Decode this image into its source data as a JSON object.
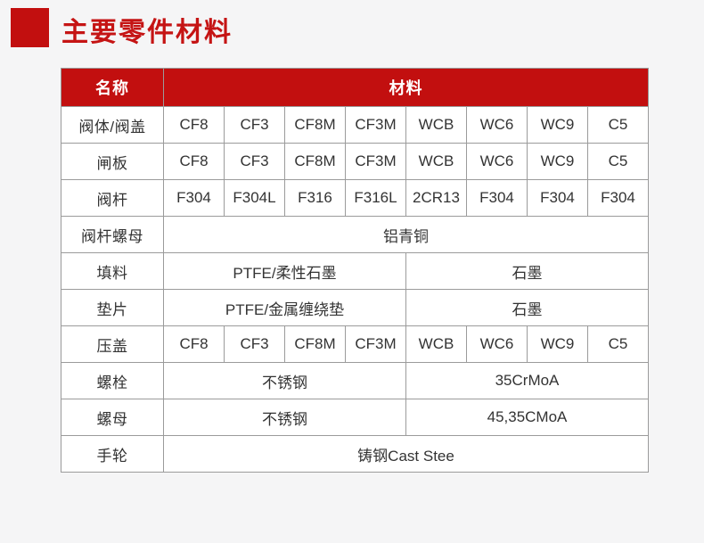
{
  "page": {
    "title": "主要零件材料",
    "background_color": "#f5f5f6",
    "accent_color": "#c20f0f",
    "title_color": "#c51414"
  },
  "table": {
    "header": {
      "name_label": "名称",
      "material_label": "材料",
      "background_color": "#c20f0f",
      "text_color": "#ffffff"
    },
    "rows": [
      {
        "name": "阀体/阀盖",
        "cells": [
          {
            "text": "CF8",
            "span": 1
          },
          {
            "text": "CF3",
            "span": 1
          },
          {
            "text": "CF8M",
            "span": 1
          },
          {
            "text": "CF3M",
            "span": 1
          },
          {
            "text": "WCB",
            "span": 1
          },
          {
            "text": "WC6",
            "span": 1
          },
          {
            "text": "WC9",
            "span": 1
          },
          {
            "text": "C5",
            "span": 1
          }
        ]
      },
      {
        "name": "闸板",
        "cells": [
          {
            "text": "CF8",
            "span": 1
          },
          {
            "text": "CF3",
            "span": 1
          },
          {
            "text": "CF8M",
            "span": 1
          },
          {
            "text": "CF3M",
            "span": 1
          },
          {
            "text": "WCB",
            "span": 1
          },
          {
            "text": "WC6",
            "span": 1
          },
          {
            "text": "WC9",
            "span": 1
          },
          {
            "text": "C5",
            "span": 1
          }
        ]
      },
      {
        "name": "阀杆",
        "cells": [
          {
            "text": "F304",
            "span": 1
          },
          {
            "text": "F304L",
            "span": 1
          },
          {
            "text": "F316",
            "span": 1
          },
          {
            "text": "F316L",
            "span": 1
          },
          {
            "text": "2CR13",
            "span": 1
          },
          {
            "text": "F304",
            "span": 1
          },
          {
            "text": "F304",
            "span": 1
          },
          {
            "text": "F304",
            "span": 1
          }
        ]
      },
      {
        "name": "阀杆螺母",
        "cells": [
          {
            "text": "铝青铜",
            "span": 8
          }
        ]
      },
      {
        "name": "填料",
        "cells": [
          {
            "text": "PTFE/柔性石墨",
            "span": 4
          },
          {
            "text": "石墨",
            "span": 4
          }
        ]
      },
      {
        "name": "垫片",
        "cells": [
          {
            "text": "PTFE/金属缠绕垫",
            "span": 4
          },
          {
            "text": "石墨",
            "span": 4
          }
        ]
      },
      {
        "name": "压盖",
        "cells": [
          {
            "text": "CF8",
            "span": 1
          },
          {
            "text": "CF3",
            "span": 1
          },
          {
            "text": "CF8M",
            "span": 1
          },
          {
            "text": "CF3M",
            "span": 1
          },
          {
            "text": "WCB",
            "span": 1
          },
          {
            "text": "WC6",
            "span": 1
          },
          {
            "text": "WC9",
            "span": 1
          },
          {
            "text": "C5",
            "span": 1
          }
        ]
      },
      {
        "name": "螺栓",
        "cells": [
          {
            "text": "不锈钢",
            "span": 4
          },
          {
            "text": "35CrMoA",
            "span": 4
          }
        ]
      },
      {
        "name": "螺母",
        "cells": [
          {
            "text": "不锈钢",
            "span": 4
          },
          {
            "text": "45,35CMoA",
            "span": 4
          }
        ]
      },
      {
        "name": "手轮",
        "cells": [
          {
            "text": "铸钢Cast Stee",
            "span": 8
          }
        ]
      }
    ]
  }
}
